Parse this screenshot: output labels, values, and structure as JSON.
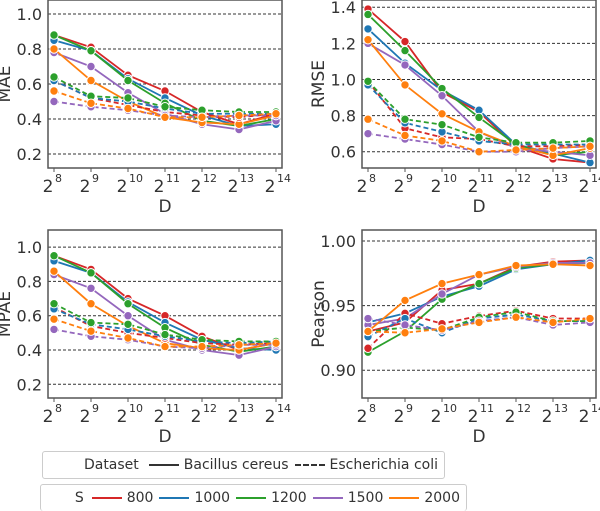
{
  "chart_data": [
    {
      "type": "line",
      "title": "",
      "xlabel": "D",
      "ylabel": "MAE",
      "x_ticks": [
        "8",
        "9",
        "10",
        "11",
        "12",
        "13",
        "14"
      ],
      "x_tick_base": "2",
      "ylim": [
        0.12,
        1.08
      ],
      "y_ticks": [
        0.2,
        0.4,
        0.6,
        0.8,
        1.0
      ],
      "y_tick_labels": [
        "0.2",
        "0.4",
        "0.6",
        "0.8",
        "1.0"
      ],
      "grid": "horizontal-dashed",
      "series": [
        {
          "name": "800 Bacillus cereus",
          "S": "800",
          "dataset": "Bacillus cereus",
          "values": [
            0.88,
            0.81,
            0.65,
            0.56,
            0.44,
            0.37,
            0.43
          ]
        },
        {
          "name": "1000 Bacillus cereus",
          "S": "1000",
          "dataset": "Bacillus cereus",
          "values": [
            0.85,
            0.79,
            0.63,
            0.52,
            0.42,
            0.36,
            0.37
          ]
        },
        {
          "name": "1200 Bacillus cereus",
          "S": "1200",
          "dataset": "Bacillus cereus",
          "values": [
            0.88,
            0.79,
            0.62,
            0.49,
            0.39,
            0.36,
            0.4
          ]
        },
        {
          "name": "1500 Bacillus cereus",
          "S": "1500",
          "dataset": "Bacillus cereus",
          "values": [
            0.78,
            0.7,
            0.55,
            0.43,
            0.37,
            0.34,
            0.39
          ]
        },
        {
          "name": "2000 Bacillus cereus",
          "S": "2000",
          "dataset": "Bacillus cereus",
          "values": [
            0.8,
            0.62,
            0.5,
            0.41,
            0.38,
            0.37,
            0.42
          ]
        },
        {
          "name": "800 Escherichia coli",
          "S": "800",
          "dataset": "Escherichia coli",
          "values": [
            0.62,
            0.52,
            0.48,
            0.44,
            0.42,
            0.41,
            0.43
          ]
        },
        {
          "name": "1000 Escherichia coli",
          "S": "1000",
          "dataset": "Escherichia coli",
          "values": [
            0.62,
            0.52,
            0.5,
            0.46,
            0.43,
            0.43,
            0.43
          ]
        },
        {
          "name": "1200 Escherichia coli",
          "S": "1200",
          "dataset": "Escherichia coli",
          "values": [
            0.64,
            0.53,
            0.52,
            0.47,
            0.45,
            0.44,
            0.44
          ]
        },
        {
          "name": "1500 Escherichia coli",
          "S": "1500",
          "dataset": "Escherichia coli",
          "values": [
            0.5,
            0.47,
            0.45,
            0.42,
            0.41,
            0.42,
            0.42
          ]
        },
        {
          "name": "2000 Escherichia coli",
          "S": "2000",
          "dataset": "Escherichia coli",
          "values": [
            0.56,
            0.49,
            0.46,
            0.41,
            0.41,
            0.42,
            0.43
          ]
        }
      ]
    },
    {
      "type": "line",
      "title": "",
      "xlabel": "D",
      "ylabel": "RMSE",
      "x_ticks": [
        "8",
        "9",
        "10",
        "11",
        "12",
        "13",
        "14"
      ],
      "x_tick_base": "2",
      "ylim": [
        0.51,
        1.44
      ],
      "y_ticks": [
        0.6,
        0.8,
        1.0,
        1.2,
        1.4
      ],
      "y_tick_labels": [
        "0.6",
        "0.8",
        "1.0",
        "1.2",
        "1.4"
      ],
      "grid": "horizontal-dashed",
      "series": [
        {
          "name": "800 Bacillus cereus",
          "S": "800",
          "dataset": "Bacillus cereus",
          "values": [
            1.39,
            1.21,
            0.93,
            0.82,
            0.63,
            0.56,
            0.54
          ]
        },
        {
          "name": "1000 Bacillus cereus",
          "S": "1000",
          "dataset": "Bacillus cereus",
          "values": [
            1.28,
            1.09,
            0.94,
            0.83,
            0.64,
            0.59,
            0.54
          ]
        },
        {
          "name": "1200 Bacillus cereus",
          "S": "1200",
          "dataset": "Bacillus cereus",
          "values": [
            1.36,
            1.16,
            0.95,
            0.79,
            0.64,
            0.58,
            0.6
          ]
        },
        {
          "name": "1500 Bacillus cereus",
          "S": "1500",
          "dataset": "Bacillus cereus",
          "values": [
            1.2,
            1.08,
            0.91,
            0.71,
            0.62,
            0.6,
            0.58
          ]
        },
        {
          "name": "2000 Bacillus cereus",
          "S": "2000",
          "dataset": "Bacillus cereus",
          "values": [
            1.22,
            0.97,
            0.81,
            0.71,
            0.63,
            0.58,
            0.62
          ]
        },
        {
          "name": "800 Escherichia coli",
          "S": "800",
          "dataset": "Escherichia coli",
          "values": [
            0.99,
            0.73,
            0.68,
            0.67,
            0.63,
            0.63,
            0.64
          ]
        },
        {
          "name": "1000 Escherichia coli",
          "S": "1000",
          "dataset": "Escherichia coli",
          "values": [
            0.97,
            0.76,
            0.71,
            0.66,
            0.64,
            0.64,
            0.64
          ]
        },
        {
          "name": "1200 Escherichia coli",
          "S": "1200",
          "dataset": "Escherichia coli",
          "values": [
            0.99,
            0.78,
            0.75,
            0.68,
            0.65,
            0.65,
            0.66
          ]
        },
        {
          "name": "1500 Escherichia coli",
          "S": "1500",
          "dataset": "Escherichia coli",
          "values": [
            0.7,
            0.67,
            0.64,
            0.6,
            0.6,
            0.62,
            0.63
          ]
        },
        {
          "name": "2000 Escherichia coli",
          "S": "2000",
          "dataset": "Escherichia coli",
          "values": [
            0.78,
            0.69,
            0.66,
            0.6,
            0.61,
            0.62,
            0.63
          ]
        }
      ]
    },
    {
      "type": "line",
      "title": "",
      "xlabel": "D",
      "ylabel": "MPAE",
      "x_ticks": [
        "8",
        "9",
        "10",
        "11",
        "12",
        "13",
        "14"
      ],
      "x_tick_base": "2",
      "ylim": [
        0.12,
        1.1
      ],
      "y_ticks": [
        0.2,
        0.4,
        0.6,
        0.8,
        1.0
      ],
      "y_tick_labels": [
        "0.2",
        "0.4",
        "0.6",
        "0.8",
        "1.0"
      ],
      "grid": "horizontal-dashed",
      "series": [
        {
          "name": "800 Bacillus cereus",
          "S": "800",
          "dataset": "Bacillus cereus",
          "values": [
            0.95,
            0.87,
            0.7,
            0.6,
            0.48,
            0.4,
            0.44
          ]
        },
        {
          "name": "1000 Bacillus cereus",
          "S": "1000",
          "dataset": "Bacillus cereus",
          "values": [
            0.92,
            0.85,
            0.68,
            0.56,
            0.46,
            0.41,
            0.4
          ]
        },
        {
          "name": "1200 Bacillus cereus",
          "S": "1200",
          "dataset": "Bacillus cereus",
          "values": [
            0.95,
            0.85,
            0.67,
            0.53,
            0.43,
            0.39,
            0.42
          ]
        },
        {
          "name": "1500 Bacillus cereus",
          "S": "1500",
          "dataset": "Bacillus cereus",
          "values": [
            0.84,
            0.76,
            0.6,
            0.46,
            0.4,
            0.37,
            0.42
          ]
        },
        {
          "name": "2000 Bacillus cereus",
          "S": "2000",
          "dataset": "Bacillus cereus",
          "values": [
            0.86,
            0.67,
            0.54,
            0.44,
            0.41,
            0.4,
            0.44
          ]
        },
        {
          "name": "800 Escherichia coli",
          "S": "800",
          "dataset": "Escherichia coli",
          "values": [
            0.65,
            0.54,
            0.5,
            0.47,
            0.44,
            0.43,
            0.44
          ]
        },
        {
          "name": "1000 Escherichia coli",
          "S": "1000",
          "dataset": "Escherichia coli",
          "values": [
            0.64,
            0.55,
            0.52,
            0.48,
            0.45,
            0.44,
            0.45
          ]
        },
        {
          "name": "1200 Escherichia coli",
          "S": "1200",
          "dataset": "Escherichia coli",
          "values": [
            0.67,
            0.56,
            0.55,
            0.49,
            0.46,
            0.45,
            0.45
          ]
        },
        {
          "name": "1500 Escherichia coli",
          "S": "1500",
          "dataset": "Escherichia coli",
          "values": [
            0.52,
            0.48,
            0.46,
            0.42,
            0.41,
            0.43,
            0.43
          ]
        },
        {
          "name": "2000 Escherichia coli",
          "S": "2000",
          "dataset": "Escherichia coli",
          "values": [
            0.58,
            0.51,
            0.47,
            0.42,
            0.42,
            0.43,
            0.44
          ]
        }
      ]
    },
    {
      "type": "line",
      "title": "",
      "xlabel": "D",
      "ylabel": "Pearson",
      "x_ticks": [
        "8",
        "9",
        "10",
        "11",
        "12",
        "13",
        "14"
      ],
      "x_tick_base": "2",
      "ylim": [
        0.8785,
        1.0085
      ],
      "y_ticks": [
        0.9,
        0.95,
        1.0
      ],
      "y_tick_labels": [
        "0.90",
        "0.95",
        "1.00"
      ],
      "grid": "horizontal-dashed",
      "series": [
        {
          "name": "800 Bacillus cereus",
          "S": "800",
          "dataset": "Bacillus cereus",
          "values": [
            0.93,
            0.937,
            0.962,
            0.967,
            0.98,
            0.984,
            0.985
          ]
        },
        {
          "name": "1000 Bacillus cereus",
          "S": "1000",
          "dataset": "Bacillus cereus",
          "values": [
            0.937,
            0.944,
            0.957,
            0.965,
            0.978,
            0.982,
            0.985
          ]
        },
        {
          "name": "1200 Bacillus cereus",
          "S": "1200",
          "dataset": "Bacillus cereus",
          "values": [
            0.914,
            0.93,
            0.955,
            0.967,
            0.979,
            0.982,
            0.983
          ]
        },
        {
          "name": "1500 Bacillus cereus",
          "S": "1500",
          "dataset": "Bacillus cereus",
          "values": [
            0.935,
            0.94,
            0.959,
            0.974,
            0.98,
            0.983,
            0.983
          ]
        },
        {
          "name": "2000 Bacillus cereus",
          "S": "2000",
          "dataset": "Bacillus cereus",
          "values": [
            0.93,
            0.954,
            0.967,
            0.974,
            0.981,
            0.982,
            0.981
          ]
        },
        {
          "name": "800 Escherichia coli",
          "S": "800",
          "dataset": "Escherichia coli",
          "values": [
            0.917,
            0.944,
            0.936,
            0.942,
            0.946,
            0.94,
            0.94
          ]
        },
        {
          "name": "1000 Escherichia coli",
          "S": "1000",
          "dataset": "Escherichia coli",
          "values": [
            0.926,
            0.94,
            0.929,
            0.94,
            0.943,
            0.938,
            0.938
          ]
        },
        {
          "name": "1200 Escherichia coli",
          "S": "1200",
          "dataset": "Escherichia coli",
          "values": [
            0.93,
            0.933,
            0.931,
            0.941,
            0.945,
            0.938,
            0.938
          ]
        },
        {
          "name": "1500 Escherichia coli",
          "S": "1500",
          "dataset": "Escherichia coli",
          "values": [
            0.94,
            0.935,
            0.931,
            0.938,
            0.941,
            0.935,
            0.937
          ]
        },
        {
          "name": "2000 Escherichia coli",
          "S": "2000",
          "dataset": "Escherichia coli",
          "values": [
            0.93,
            0.929,
            0.932,
            0.937,
            0.941,
            0.937,
            0.94
          ]
        }
      ]
    }
  ],
  "colors": {
    "800": "#d62728",
    "1000": "#1f77b4",
    "1200": "#2ca02c",
    "1500": "#9467bd",
    "2000": "#ff7f0e",
    "axis": "#555555",
    "grid": "#333333",
    "text": "#333333"
  },
  "legend": {
    "dataset": {
      "title": "Dataset",
      "items": [
        {
          "label": "Bacillus cereus",
          "style": "solid"
        },
        {
          "label": "Escherichia coli",
          "style": "dashed"
        }
      ]
    },
    "s": {
      "title": "S",
      "items": [
        {
          "label": "800",
          "key": "800"
        },
        {
          "label": "1000",
          "key": "1000"
        },
        {
          "label": "1200",
          "key": "1200"
        },
        {
          "label": "1500",
          "key": "1500"
        },
        {
          "label": "2000",
          "key": "2000"
        }
      ]
    }
  }
}
